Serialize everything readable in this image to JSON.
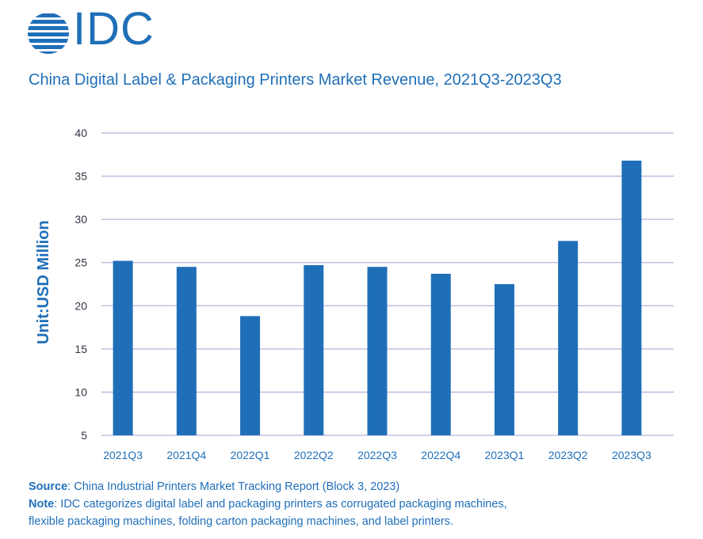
{
  "brand": {
    "name": "IDC"
  },
  "footer": {
    "source_label": "Source",
    "source_text": ": China Industrial Printers Market Tracking Report (Block 3, 2023)",
    "note_label": "Note",
    "note_text": ": IDC categorizes digital label and packaging printers as corrugated packaging machines,",
    "note_text_2": "flexible packaging machines, folding carton packaging machines, and label printers."
  },
  "colors": {
    "accent": "#1f6fb8",
    "gridline": "#b4b4dc"
  },
  "chart_data": {
    "type": "bar",
    "title": "China Digital Label & Packaging Printers Market Revenue, 2021Q3-2023Q3",
    "xlabel": "",
    "ylabel": "Unit:USD Million",
    "categories": [
      "2021Q3",
      "2021Q4",
      "2022Q1",
      "2022Q2",
      "2022Q3",
      "2022Q4",
      "2023Q1",
      "2023Q2",
      "2023Q3"
    ],
    "values": [
      25.2,
      24.5,
      18.8,
      24.7,
      24.5,
      23.7,
      22.5,
      27.5,
      36.8
    ],
    "ylim": [
      5,
      40
    ],
    "yticks": [
      5,
      10,
      15,
      20,
      25,
      30,
      35,
      40
    ],
    "grid": true,
    "legend": "none"
  }
}
